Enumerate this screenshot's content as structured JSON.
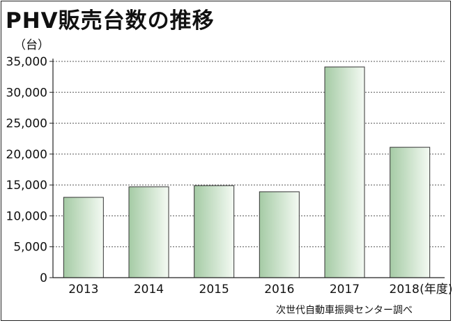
{
  "title": "PHV販売台数の推移",
  "source": "次世代自動車振興センター調べ",
  "chart_data": {
    "type": "bar",
    "title": "PHV販売台数の推移",
    "y_unit": "（台）",
    "x_unit": "(年度)",
    "categories": [
      "2013",
      "2014",
      "2015",
      "2016",
      "2017",
      "2018"
    ],
    "values": [
      13000,
      14700,
      14900,
      13900,
      34100,
      21100
    ],
    "ylim": [
      0,
      35000
    ],
    "y_ticks": [
      0,
      5000,
      10000,
      15000,
      20000,
      25000,
      30000,
      35000
    ],
    "y_tick_labels": [
      "0",
      "5,000",
      "10,000",
      "15,000",
      "20,000",
      "25,000",
      "30,000",
      "35,000"
    ],
    "grid": true,
    "colors": {
      "bar_dark": "#a5cba5",
      "bar_light": "#f4faf3",
      "bar_edge": "#333333",
      "grid": "#555555"
    }
  }
}
